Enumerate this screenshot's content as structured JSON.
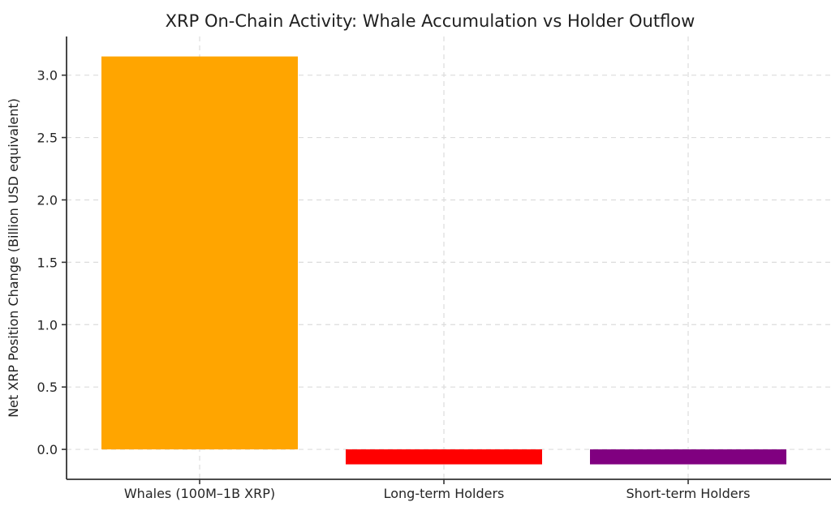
{
  "chart_data": {
    "type": "bar",
    "title": "XRP On-Chain Activity: Whale Accumulation vs Holder Outflow",
    "categories": [
      "Whales (100M–1B XRP)",
      "Long-term Holders",
      "Short-term Holders"
    ],
    "values": [
      3.15,
      -0.12,
      -0.12
    ],
    "bar_colors": [
      "#FFA500",
      "#FF0000",
      "#800080"
    ],
    "xlabel": "",
    "ylabel": "Net XRP Position Change (Billion USD equivalent)",
    "ylim": [
      -0.24,
      3.31
    ],
    "yticks": [
      0.0,
      0.5,
      1.0,
      1.5,
      2.0,
      2.5,
      3.0
    ],
    "ytick_labels": [
      "0.0",
      "0.5",
      "1.0",
      "1.5",
      "2.0",
      "2.5",
      "3.0"
    ],
    "grid": true,
    "grid_style": "dashed",
    "legend_position": "none",
    "background_color": "#ffffff",
    "grid_color": "#dcdcdc",
    "spine_color": "#333333",
    "tick_color": "#333333",
    "text_color": "#262626"
  }
}
